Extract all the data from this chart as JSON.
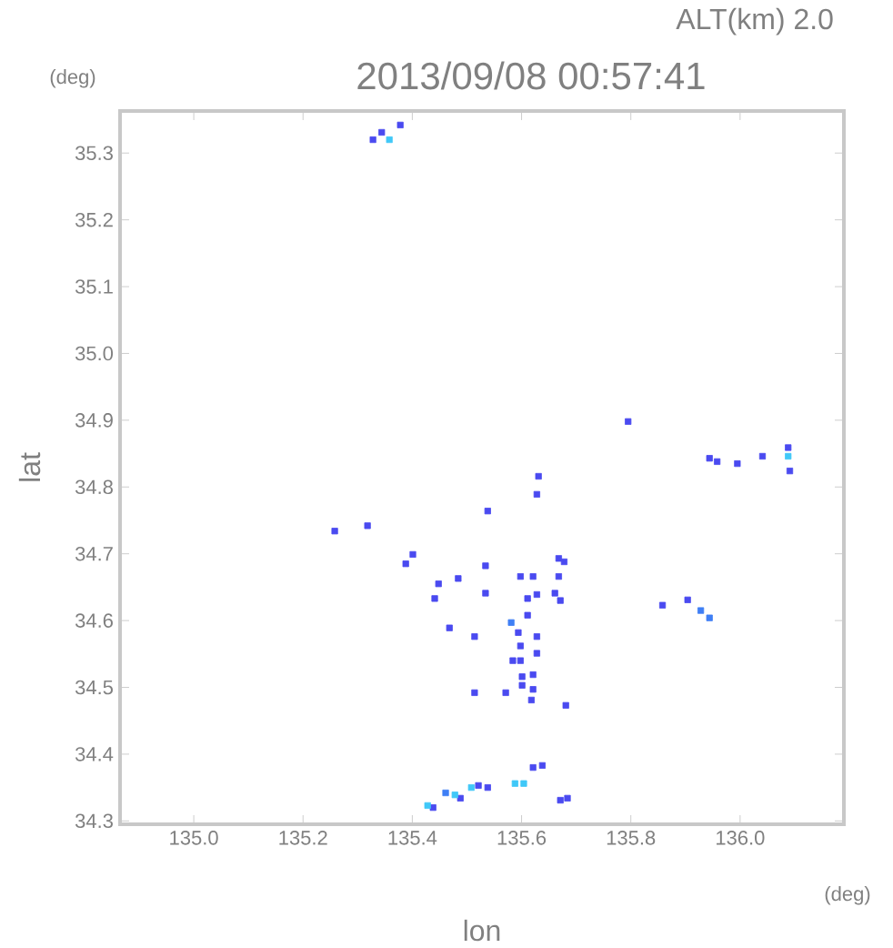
{
  "chart_data": {
    "type": "scatter",
    "title": "2013/09/08 00:57:41",
    "subtitle": "ALT(km) 2.0",
    "xlabel": "lon",
    "ylabel": "lat",
    "annotations": [
      "(deg)",
      "(deg)"
    ],
    "xlim": [
      134.865,
      136.19
    ],
    "ylim": [
      34.295,
      35.363
    ],
    "xticks": [
      {
        "value": 135.0,
        "label": "135.0"
      },
      {
        "value": 135.2,
        "label": "135.2"
      },
      {
        "value": 135.4,
        "label": "135.4"
      },
      {
        "value": 135.6,
        "label": "135.6"
      },
      {
        "value": 135.8,
        "label": "135.8"
      },
      {
        "value": 136.0,
        "label": "136.0"
      }
    ],
    "yticks": [
      {
        "value": 34.3,
        "label": "34.3"
      },
      {
        "value": 34.4,
        "label": "34.4"
      },
      {
        "value": 34.5,
        "label": "34.5"
      },
      {
        "value": 34.6,
        "label": "34.6"
      },
      {
        "value": 34.7,
        "label": "34.7"
      },
      {
        "value": 34.8,
        "label": "34.8"
      },
      {
        "value": 34.9,
        "label": "34.9"
      },
      {
        "value": 35.0,
        "label": "35.0"
      },
      {
        "value": 35.1,
        "label": "35.1"
      },
      {
        "value": 35.2,
        "label": "35.2"
      },
      {
        "value": 35.3,
        "label": "35.3"
      }
    ],
    "marker": "square",
    "series": [
      {
        "color": "#4a4af0",
        "x": [
          135.795,
          135.631,
          135.628,
          135.538,
          135.258,
          135.318,
          135.401,
          135.388,
          135.448,
          135.484,
          135.534,
          135.534,
          135.441,
          135.598,
          135.621,
          135.668,
          135.678,
          135.668,
          135.628,
          135.611,
          135.671,
          135.661,
          135.611,
          135.468,
          135.514,
          135.594,
          135.628,
          135.598,
          135.628,
          135.584,
          135.598,
          135.601,
          135.621,
          135.601,
          135.621,
          135.571,
          135.514,
          135.618,
          135.681,
          135.858,
          135.944,
          135.958,
          135.995,
          136.041,
          136.088,
          136.091,
          135.904,
          135.328,
          135.344,
          135.378,
          135.438,
          135.488,
          135.521,
          135.538,
          135.621,
          135.638,
          135.671,
          135.684
        ],
        "values": [
          34.898,
          34.816,
          34.789,
          34.764,
          34.734,
          34.742,
          34.699,
          34.685,
          34.655,
          34.663,
          34.682,
          34.641,
          34.633,
          34.666,
          34.666,
          34.693,
          34.688,
          34.666,
          34.639,
          34.633,
          34.63,
          34.641,
          34.608,
          34.589,
          34.576,
          34.582,
          34.576,
          34.562,
          34.551,
          34.54,
          34.54,
          34.516,
          34.519,
          34.503,
          34.497,
          34.492,
          34.492,
          34.481,
          34.473,
          34.623,
          34.843,
          34.838,
          34.835,
          34.846,
          34.859,
          34.824,
          34.631,
          35.32,
          35.331,
          35.342,
          34.32,
          34.334,
          34.353,
          34.35,
          34.38,
          34.383,
          34.331,
          34.334
        ]
      },
      {
        "color": "#3f7ff5",
        "x": [
          135.928,
          135.944,
          135.461,
          135.581
        ],
        "values": [
          34.615,
          34.604,
          34.342,
          34.597
        ]
      },
      {
        "color": "#40c8f8",
        "x": [
          136.088,
          135.358,
          135.428,
          135.478,
          135.508,
          135.588,
          135.604
        ],
        "values": [
          34.846,
          35.32,
          34.323,
          34.339,
          34.35,
          34.356,
          34.356
        ]
      }
    ]
  }
}
